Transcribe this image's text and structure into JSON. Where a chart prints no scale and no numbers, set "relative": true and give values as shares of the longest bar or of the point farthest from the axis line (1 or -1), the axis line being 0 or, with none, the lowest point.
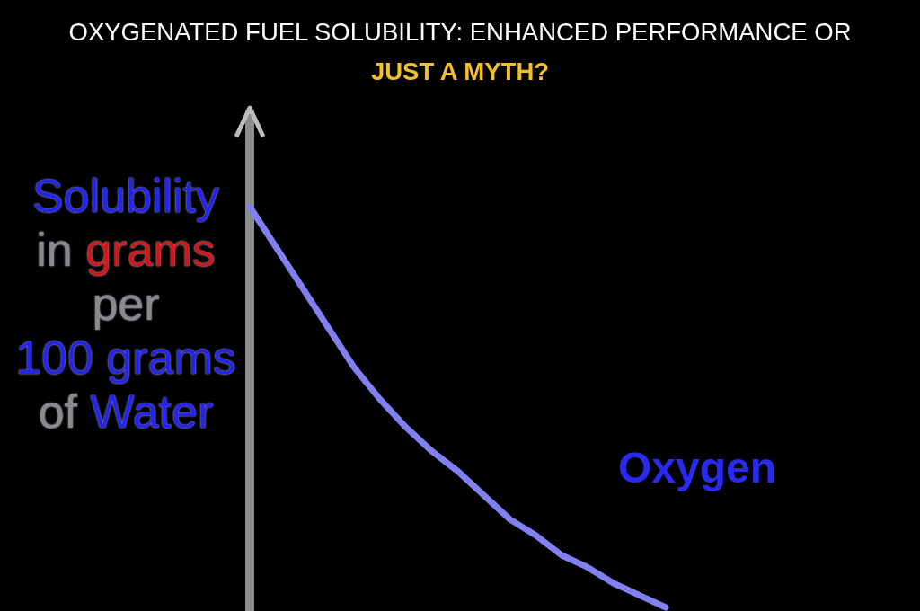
{
  "chart_data": {
    "type": "line",
    "title": "OXYGENATED FUEL SOLUBILITY: ENHANCED PERFORMANCE OR JUST A MYTH?",
    "ylabel": "Solubility in grams per 100 grams of Water",
    "relative": true,
    "categories": [
      null,
      null,
      null,
      null,
      null,
      null,
      null,
      null,
      null,
      null,
      null,
      null,
      null,
      null,
      null,
      null,
      null
    ],
    "series": [
      {
        "name": "Oxygen",
        "color": "#8080f0",
        "values": [
          1.0,
          0.9,
          0.8,
          0.7,
          0.6,
          0.52,
          0.45,
          0.39,
          0.34,
          0.28,
          0.22,
          0.18,
          0.13,
          0.1,
          0.06,
          0.03,
          0.0
        ]
      }
    ],
    "legend": false,
    "marker": "none",
    "line_style": "solid"
  }
}
